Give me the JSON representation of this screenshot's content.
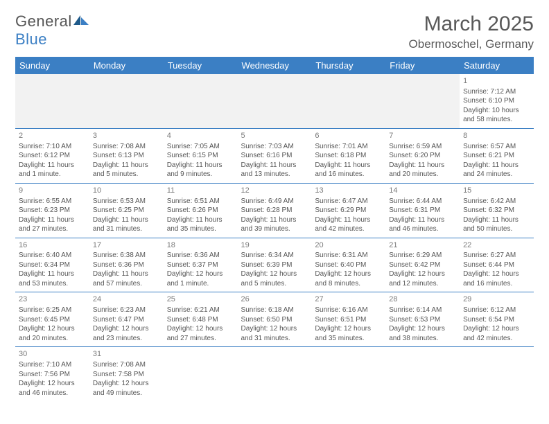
{
  "brand": {
    "name_a": "General",
    "name_b": "Blue"
  },
  "title": "March 2025",
  "location": "Obermoschel, Germany",
  "colors": {
    "header_bg": "#3b7fc4",
    "header_fg": "#ffffff",
    "border": "#3b7fc4",
    "text": "#555555",
    "blank_bg": "#f2f2f2"
  },
  "day_headers": [
    "Sunday",
    "Monday",
    "Tuesday",
    "Wednesday",
    "Thursday",
    "Friday",
    "Saturday"
  ],
  "weeks": [
    [
      null,
      null,
      null,
      null,
      null,
      null,
      {
        "n": "1",
        "sr": "Sunrise: 7:12 AM",
        "ss": "Sunset: 6:10 PM",
        "dl": "Daylight: 10 hours and 58 minutes."
      }
    ],
    [
      {
        "n": "2",
        "sr": "Sunrise: 7:10 AM",
        "ss": "Sunset: 6:12 PM",
        "dl": "Daylight: 11 hours and 1 minute."
      },
      {
        "n": "3",
        "sr": "Sunrise: 7:08 AM",
        "ss": "Sunset: 6:13 PM",
        "dl": "Daylight: 11 hours and 5 minutes."
      },
      {
        "n": "4",
        "sr": "Sunrise: 7:05 AM",
        "ss": "Sunset: 6:15 PM",
        "dl": "Daylight: 11 hours and 9 minutes."
      },
      {
        "n": "5",
        "sr": "Sunrise: 7:03 AM",
        "ss": "Sunset: 6:16 PM",
        "dl": "Daylight: 11 hours and 13 minutes."
      },
      {
        "n": "6",
        "sr": "Sunrise: 7:01 AM",
        "ss": "Sunset: 6:18 PM",
        "dl": "Daylight: 11 hours and 16 minutes."
      },
      {
        "n": "7",
        "sr": "Sunrise: 6:59 AM",
        "ss": "Sunset: 6:20 PM",
        "dl": "Daylight: 11 hours and 20 minutes."
      },
      {
        "n": "8",
        "sr": "Sunrise: 6:57 AM",
        "ss": "Sunset: 6:21 PM",
        "dl": "Daylight: 11 hours and 24 minutes."
      }
    ],
    [
      {
        "n": "9",
        "sr": "Sunrise: 6:55 AM",
        "ss": "Sunset: 6:23 PM",
        "dl": "Daylight: 11 hours and 27 minutes."
      },
      {
        "n": "10",
        "sr": "Sunrise: 6:53 AM",
        "ss": "Sunset: 6:25 PM",
        "dl": "Daylight: 11 hours and 31 minutes."
      },
      {
        "n": "11",
        "sr": "Sunrise: 6:51 AM",
        "ss": "Sunset: 6:26 PM",
        "dl": "Daylight: 11 hours and 35 minutes."
      },
      {
        "n": "12",
        "sr": "Sunrise: 6:49 AM",
        "ss": "Sunset: 6:28 PM",
        "dl": "Daylight: 11 hours and 39 minutes."
      },
      {
        "n": "13",
        "sr": "Sunrise: 6:47 AM",
        "ss": "Sunset: 6:29 PM",
        "dl": "Daylight: 11 hours and 42 minutes."
      },
      {
        "n": "14",
        "sr": "Sunrise: 6:44 AM",
        "ss": "Sunset: 6:31 PM",
        "dl": "Daylight: 11 hours and 46 minutes."
      },
      {
        "n": "15",
        "sr": "Sunrise: 6:42 AM",
        "ss": "Sunset: 6:32 PM",
        "dl": "Daylight: 11 hours and 50 minutes."
      }
    ],
    [
      {
        "n": "16",
        "sr": "Sunrise: 6:40 AM",
        "ss": "Sunset: 6:34 PM",
        "dl": "Daylight: 11 hours and 53 minutes."
      },
      {
        "n": "17",
        "sr": "Sunrise: 6:38 AM",
        "ss": "Sunset: 6:36 PM",
        "dl": "Daylight: 11 hours and 57 minutes."
      },
      {
        "n": "18",
        "sr": "Sunrise: 6:36 AM",
        "ss": "Sunset: 6:37 PM",
        "dl": "Daylight: 12 hours and 1 minute."
      },
      {
        "n": "19",
        "sr": "Sunrise: 6:34 AM",
        "ss": "Sunset: 6:39 PM",
        "dl": "Daylight: 12 hours and 5 minutes."
      },
      {
        "n": "20",
        "sr": "Sunrise: 6:31 AM",
        "ss": "Sunset: 6:40 PM",
        "dl": "Daylight: 12 hours and 8 minutes."
      },
      {
        "n": "21",
        "sr": "Sunrise: 6:29 AM",
        "ss": "Sunset: 6:42 PM",
        "dl": "Daylight: 12 hours and 12 minutes."
      },
      {
        "n": "22",
        "sr": "Sunrise: 6:27 AM",
        "ss": "Sunset: 6:44 PM",
        "dl": "Daylight: 12 hours and 16 minutes."
      }
    ],
    [
      {
        "n": "23",
        "sr": "Sunrise: 6:25 AM",
        "ss": "Sunset: 6:45 PM",
        "dl": "Daylight: 12 hours and 20 minutes."
      },
      {
        "n": "24",
        "sr": "Sunrise: 6:23 AM",
        "ss": "Sunset: 6:47 PM",
        "dl": "Daylight: 12 hours and 23 minutes."
      },
      {
        "n": "25",
        "sr": "Sunrise: 6:21 AM",
        "ss": "Sunset: 6:48 PM",
        "dl": "Daylight: 12 hours and 27 minutes."
      },
      {
        "n": "26",
        "sr": "Sunrise: 6:18 AM",
        "ss": "Sunset: 6:50 PM",
        "dl": "Daylight: 12 hours and 31 minutes."
      },
      {
        "n": "27",
        "sr": "Sunrise: 6:16 AM",
        "ss": "Sunset: 6:51 PM",
        "dl": "Daylight: 12 hours and 35 minutes."
      },
      {
        "n": "28",
        "sr": "Sunrise: 6:14 AM",
        "ss": "Sunset: 6:53 PM",
        "dl": "Daylight: 12 hours and 38 minutes."
      },
      {
        "n": "29",
        "sr": "Sunrise: 6:12 AM",
        "ss": "Sunset: 6:54 PM",
        "dl": "Daylight: 12 hours and 42 minutes."
      }
    ],
    [
      {
        "n": "30",
        "sr": "Sunrise: 7:10 AM",
        "ss": "Sunset: 7:56 PM",
        "dl": "Daylight: 12 hours and 46 minutes."
      },
      {
        "n": "31",
        "sr": "Sunrise: 7:08 AM",
        "ss": "Sunset: 7:58 PM",
        "dl": "Daylight: 12 hours and 49 minutes."
      },
      null,
      null,
      null,
      null,
      null
    ]
  ]
}
